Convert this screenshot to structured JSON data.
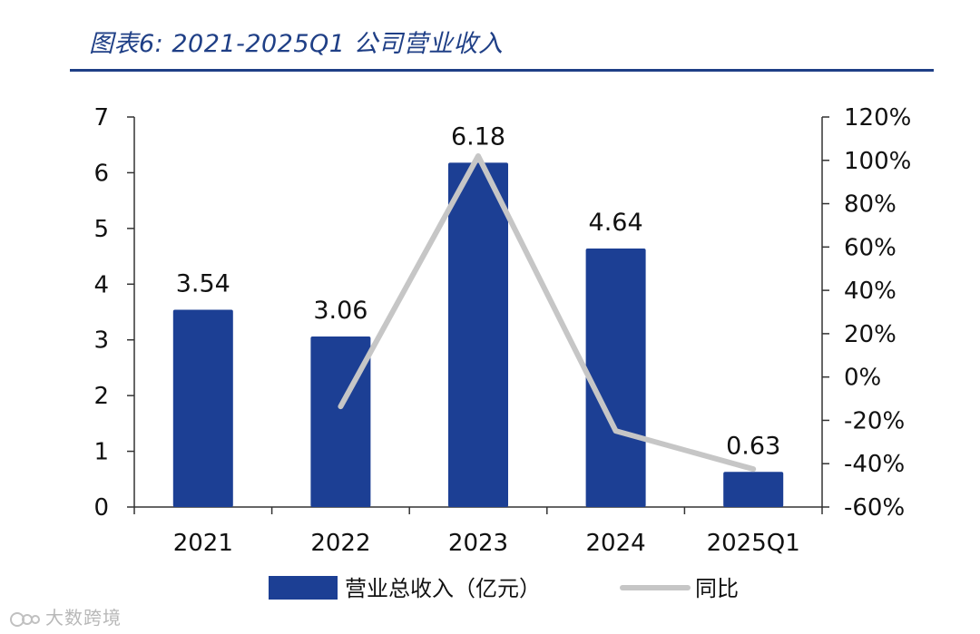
{
  "figure": {
    "title": "图表6:  2021-2025Q1 公司营业收入",
    "watermark": "大数跨境"
  },
  "colors": {
    "bar": "#1c3f94",
    "line": "#c6c6c6",
    "title": "#1f3f86",
    "axis": "#333333",
    "text": "#111111"
  },
  "chart_data": {
    "type": "bar",
    "title": "2021-2025Q1 公司营业收入",
    "categories": [
      "2021",
      "2022",
      "2023",
      "2024",
      "2025Q1"
    ],
    "series": [
      {
        "name": "营业总收入（亿元）",
        "type": "bar",
        "axis": "left",
        "values": [
          3.54,
          3.06,
          6.18,
          4.64,
          0.63
        ],
        "labels": [
          "3.54",
          "3.06",
          "6.18",
          "4.64",
          "0.63"
        ]
      },
      {
        "name": "同比",
        "type": "line",
        "axis": "right",
        "values": [
          null,
          -13.6,
          102.0,
          -24.9,
          -42.5
        ]
      }
    ],
    "y_left": {
      "lim": [
        0,
        7
      ],
      "ticks": [
        0,
        1,
        2,
        3,
        4,
        5,
        6,
        7
      ],
      "tick_labels": [
        "0",
        "1",
        "2",
        "3",
        "4",
        "5",
        "6",
        "7"
      ]
    },
    "y_right": {
      "lim": [
        -60,
        120
      ],
      "ticks": [
        -60,
        -40,
        -20,
        0,
        20,
        40,
        60,
        80,
        100,
        120
      ],
      "tick_labels": [
        "-60%",
        "-40%",
        "-20%",
        "0%",
        "20%",
        "40%",
        "60%",
        "80%",
        "100%",
        "120%"
      ]
    },
    "legend": {
      "position": "bottom",
      "entries": [
        "营业总收入（亿元）",
        "同比"
      ]
    },
    "grid": false
  }
}
